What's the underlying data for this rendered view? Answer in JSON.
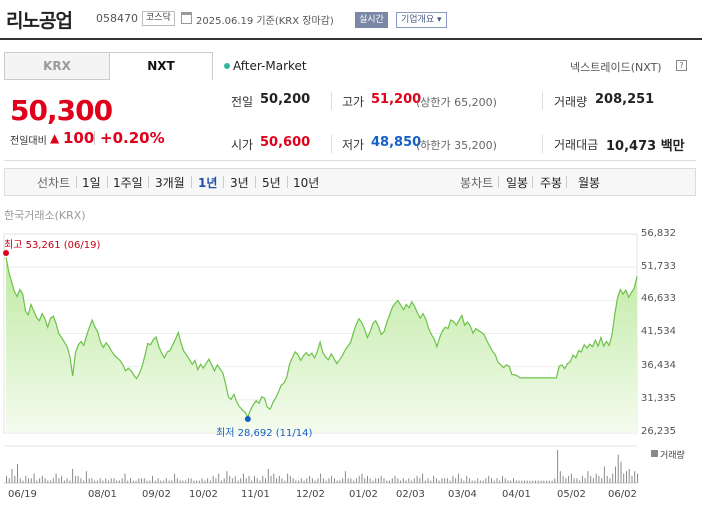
{
  "header": {
    "company_name": "리노공업",
    "code": "058470",
    "market": "코스닥",
    "date_text": "2025.06.19 기준(KRX 장마감)",
    "realtime_label": "실시간",
    "company_info_label": "기업개요 ▾"
  },
  "tabs": {
    "krx": "KRX",
    "nxt": "NXT"
  },
  "after_market": "After-Market",
  "nxt_link": "넥스트레이드(NXT)",
  "help_glyph": "?",
  "price": {
    "current": "50,300",
    "change_label": "전일대비",
    "change_symbol": "▲",
    "change_value": "100",
    "change_pct": "+0.20%"
  },
  "quotes": {
    "prev_close_label": "전일",
    "prev_close": "50,200",
    "open_label": "시가",
    "open": "50,600",
    "high_label": "고가",
    "high": "51,200",
    "upper_limit": "(상한가 65,200)",
    "low_label": "저가",
    "low": "48,850",
    "lower_limit": "(하한가 35,200)",
    "volume_label": "거래량",
    "volume": "208,251",
    "amount_label": "거래대금",
    "amount": "10,473 백만"
  },
  "period_bar": {
    "line_label": "선차트",
    "line_periods": [
      "1일",
      "1주일",
      "3개월",
      "1년",
      "3년",
      "5년",
      "10년"
    ],
    "active_period": "1년",
    "candle_label": "봉차트",
    "candle_periods": [
      "일봉",
      "주봉",
      "월봉"
    ]
  },
  "chart_source": "한국거래소(KRX)",
  "chart_data": {
    "type": "area",
    "title": "",
    "y_ticks": [
      "56,832",
      "51,733",
      "46,633",
      "41,534",
      "36,434",
      "31,335",
      "26,235"
    ],
    "ylim": [
      26235,
      56832
    ],
    "x_ticks": [
      "06/19",
      "08/01",
      "09/02",
      "10/02",
      "11/01",
      "12/02",
      "01/02",
      "02/03",
      "03/04",
      "04/01",
      "05/02",
      "06/02"
    ],
    "high_label": "최고 53,261 (06/19)",
    "high_value": 53261,
    "low_label": "최저 28,692 (11/14)",
    "low_value": 28692,
    "volume_label": "거래량",
    "colors": {
      "line": "#6cc24a",
      "fill_top": "#bfeaa3",
      "fill_bottom": "#f4fbee",
      "volume": "#8a8a8a",
      "high": "#e0001a",
      "low": "#1560c4"
    },
    "series": [
      53261,
      51000,
      49500,
      48000,
      47200,
      48300,
      47600,
      45000,
      44400,
      46000,
      45000,
      44000,
      43500,
      44600,
      43800,
      42500,
      43900,
      44200,
      43100,
      41500,
      40900,
      40200,
      39500,
      38000,
      35000,
      38600,
      39800,
      40300,
      39700,
      41200,
      42500,
      43600,
      42500,
      41800,
      40200,
      39400,
      40100,
      39600,
      38800,
      38200,
      37800,
      37400,
      36800,
      35800,
      36200,
      35800,
      35100,
      34600,
      35400,
      36500,
      38200,
      40000,
      39800,
      40600,
      41000,
      39500,
      38500,
      37800,
      38700,
      38900,
      39800,
      40700,
      41700,
      40000,
      38800,
      38200,
      37500,
      36800,
      37400,
      36000,
      36800,
      36200,
      36900,
      37600,
      36700,
      35800,
      36700,
      36100,
      35500,
      33800,
      31800,
      31400,
      32200,
      31000,
      30300,
      29800,
      29400,
      28692,
      29800,
      30600,
      31200,
      30800,
      31800,
      31600,
      30200,
      29900,
      30900,
      31600,
      32500,
      33600,
      33900,
      34800,
      36800,
      37800,
      38700,
      38300,
      37400,
      38100,
      38600,
      38100,
      38500,
      37800,
      38800,
      40200,
      38600,
      37900,
      37500,
      38400,
      37700,
      36900,
      37500,
      38100,
      39000,
      39600,
      40200,
      41700,
      42900,
      43800,
      43200,
      42200,
      40900,
      41800,
      43100,
      43500,
      42600,
      41400,
      41800,
      43200,
      44400,
      45600,
      46200,
      46600,
      45900,
      45200,
      46000,
      45500,
      46400,
      45700,
      44700,
      43900,
      44600,
      43800,
      42400,
      41400,
      40700,
      39500,
      40900,
      41900,
      42500,
      42300,
      43600,
      43400,
      42800,
      43600,
      44300,
      42800,
      43300,
      42700,
      41600,
      42300,
      42000,
      41700,
      41400,
      40400,
      39600,
      38800,
      38300,
      37100,
      36700,
      36300,
      36700,
      36500,
      35200,
      35200,
      35000,
      34700,
      34700,
      34700,
      34700,
      34700,
      34700,
      34700,
      34700,
      34700,
      34700,
      34700,
      34700,
      34700,
      34700,
      36500,
      36700,
      36100,
      36900,
      37200,
      38200,
      37800,
      38900,
      38700,
      39800,
      39300,
      39900,
      39500,
      40500,
      39600,
      40900,
      39600,
      40300,
      39700,
      41300,
      44500,
      47000,
      48300,
      47600,
      48200,
      47100,
      47800,
      48500,
      50300
    ],
    "volume": [
      3,
      2,
      6,
      3,
      8,
      2,
      1,
      3,
      2,
      2,
      4,
      1,
      2,
      3,
      2,
      1,
      1,
      2,
      4,
      2,
      3,
      1,
      2,
      1,
      6,
      3,
      3,
      2,
      1,
      5,
      2,
      2,
      1,
      1,
      2,
      1,
      2,
      1,
      2,
      2,
      1,
      1,
      2,
      4,
      1,
      2,
      1,
      1,
      2,
      2,
      2,
      1,
      1,
      3,
      1,
      2,
      1,
      1,
      2,
      1,
      1,
      4,
      2,
      1,
      1,
      1,
      2,
      2,
      1,
      1,
      1,
      2,
      1,
      2,
      1,
      3,
      2,
      4,
      1,
      2,
      5,
      3,
      2,
      3,
      1,
      2,
      4,
      2,
      3,
      1,
      3,
      2,
      1,
      3,
      2,
      6,
      3,
      4,
      2,
      3,
      2,
      1,
      4,
      3,
      2,
      1,
      1,
      2,
      1,
      2,
      3,
      2,
      1,
      2,
      4,
      2,
      1,
      2,
      3,
      2,
      1,
      1,
      2,
      5,
      2,
      2,
      1,
      2,
      3,
      4,
      2,
      3,
      2,
      1,
      2,
      2,
      3,
      2,
      1,
      1,
      2,
      3,
      2,
      1,
      2,
      1,
      2,
      1,
      2,
      3,
      2,
      4,
      1,
      2,
      1,
      3,
      2,
      1,
      2,
      2,
      2,
      1,
      3,
      2,
      4,
      2,
      1,
      3,
      2,
      1,
      1,
      2,
      1,
      1,
      2,
      3,
      2,
      1,
      2,
      1,
      3,
      2,
      1,
      1,
      2,
      1,
      1,
      1,
      1,
      1,
      1,
      1,
      1,
      1,
      1,
      1,
      1,
      1,
      1,
      2,
      14,
      5,
      3,
      2,
      3,
      4,
      2,
      2,
      1,
      3,
      2,
      5,
      3,
      2,
      4,
      3,
      2,
      7,
      3,
      2,
      4,
      7,
      12,
      9,
      4,
      5,
      6,
      3,
      5,
      4
    ]
  }
}
